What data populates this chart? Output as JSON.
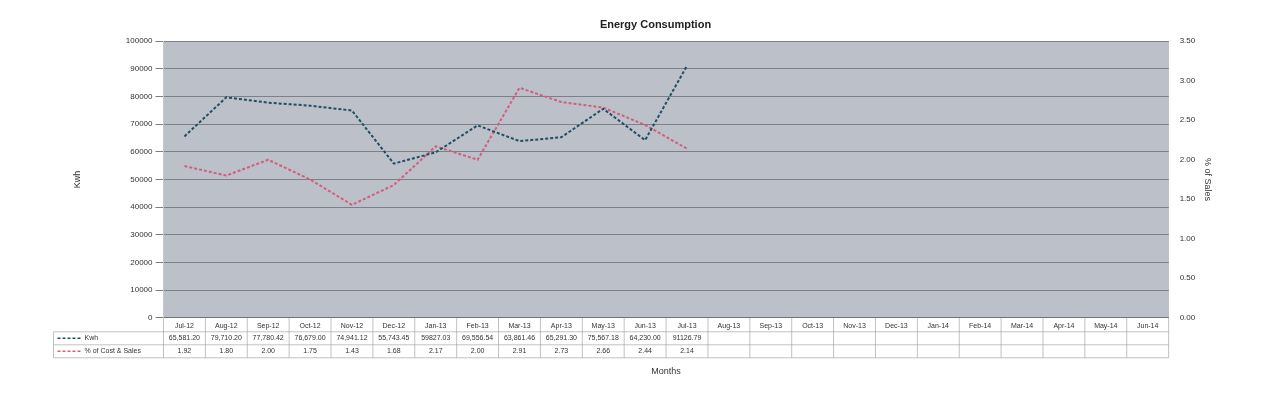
{
  "chart_data": {
    "type": "line",
    "title": "Energy Consumption",
    "xlabel": "Months",
    "ylabel": "Kwh",
    "y2label": "% of Sales",
    "categories": [
      "Jul-12",
      "Aug-12",
      "Sep-12",
      "Oct-12",
      "Nov-12",
      "Dec-12",
      "Jan-13",
      "Feb-13",
      "Mar-13",
      "Apr-13",
      "May-13",
      "Jun-13",
      "Jul-13",
      "Aug-13",
      "Sep-13",
      "Oct-13",
      "Nov-13",
      "Dec-13",
      "Jan-14",
      "Feb-14",
      "Mar-14",
      "Apr-14",
      "May-14",
      "Jun-14"
    ],
    "series": [
      {
        "name": "Kwh",
        "color": "#1f4e66",
        "values": [
          65581.2,
          79710.2,
          77780.42,
          76679,
          74941.12,
          55743.45,
          59827.03,
          69556.54,
          63861.46,
          65291.3,
          75567.18,
          64230,
          91126.79,
          null,
          null,
          null,
          null,
          null,
          null,
          null,
          null,
          null,
          null,
          null
        ],
        "value_labels": [
          "65,581.20",
          "79,710.20",
          "77,780.42",
          "76,679.00",
          "74,941.12",
          "55,743.45",
          "59827.03",
          "69,556.54",
          "63,861.46",
          "65,291.30",
          "75,567.18",
          "64,230.00",
          "91126.79",
          null,
          null,
          null,
          null,
          null,
          null,
          null,
          null,
          null,
          null,
          null
        ]
      },
      {
        "name": "% of Cost & Sales",
        "color": "#d0607a",
        "axis": "y2",
        "values": [
          1.92,
          1.8,
          2.0,
          1.75,
          1.43,
          1.68,
          2.17,
          2.0,
          2.91,
          2.73,
          2.66,
          2.44,
          2.14,
          null,
          null,
          null,
          null,
          null,
          null,
          null,
          null,
          null,
          null,
          null
        ],
        "value_labels": [
          "1.92",
          "1.80",
          "2.00",
          "1.75",
          "1.43",
          "1.68",
          "2.17",
          "2.00",
          "2.91",
          "2.73",
          "2.66",
          "2.44",
          "2.14",
          null,
          null,
          null,
          null,
          null,
          null,
          null,
          null,
          null,
          null,
          null
        ]
      }
    ],
    "ylim": [
      0,
      100000
    ],
    "yticks": [
      0,
      10000,
      20000,
      30000,
      40000,
      50000,
      60000,
      70000,
      80000,
      90000,
      100000
    ],
    "y2lim": [
      0,
      3.5
    ],
    "y2ticks": [
      {
        "value": 0,
        "label": "0.00"
      },
      {
        "value": 0.5,
        "label": "0.50"
      },
      {
        "value": 1,
        "label": "1.00"
      },
      {
        "value": 1.5,
        "label": "1.50"
      },
      {
        "value": 2,
        "label": "2.00"
      },
      {
        "value": 2.5,
        "label": "2.50"
      },
      {
        "value": 3,
        "label": "3.00"
      },
      {
        "value": 3.5,
        "label": "3.50"
      }
    ],
    "grid": "y",
    "legend": "bottom left",
    "marker": "none",
    "line_style": "dashed"
  }
}
